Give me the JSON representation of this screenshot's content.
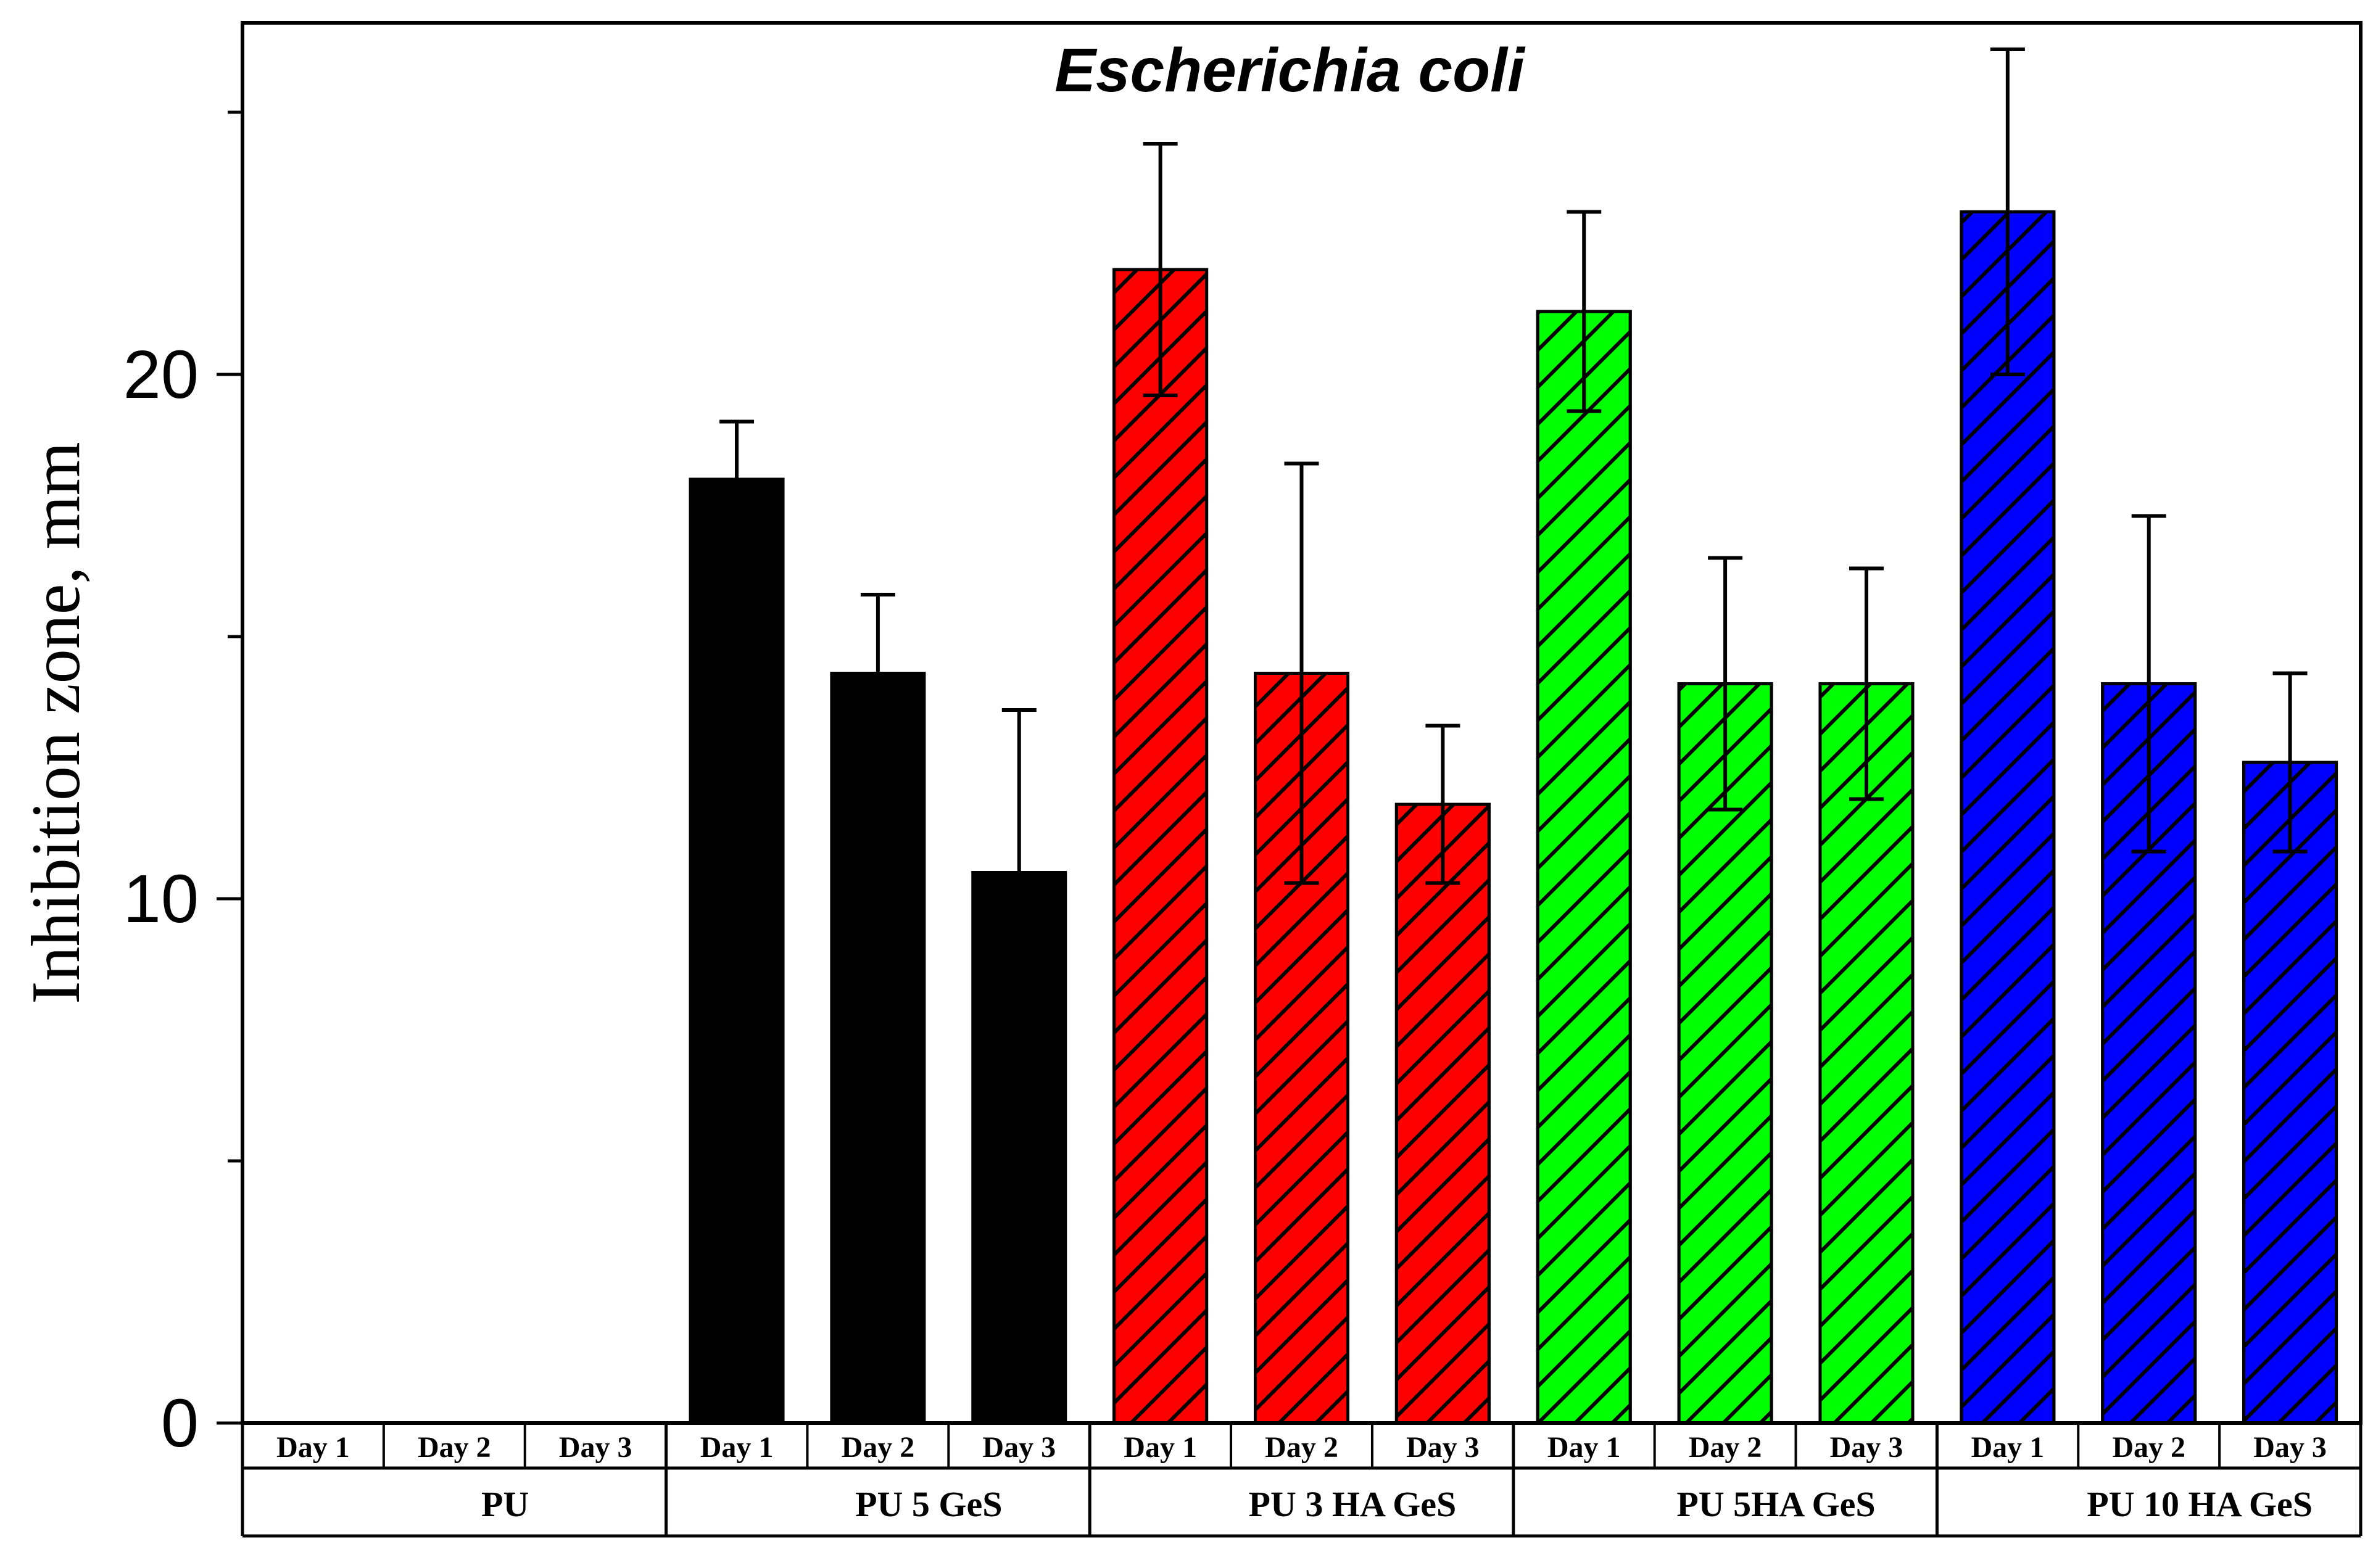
{
  "chart_data": {
    "type": "bar",
    "title": "Escherichia coli",
    "xlabel": "",
    "ylabel": "Inhibition zone, mm",
    "ylim": [
      0,
      26
    ],
    "yticks": [
      0,
      10,
      20
    ],
    "grid": false,
    "legend": "none",
    "day_labels": [
      "Day 1",
      "Day 2",
      "Day 3"
    ],
    "groups": [
      {
        "name": "PU",
        "color": "#000000",
        "hatch": false,
        "values": [
          0,
          0,
          0
        ],
        "errors": [
          0,
          0,
          0
        ]
      },
      {
        "name": "PU 5 GeS",
        "color": "#000000",
        "hatch": false,
        "values": [
          18.0,
          14.3,
          10.5
        ],
        "errors": [
          1.1,
          1.5,
          3.1
        ]
      },
      {
        "name": "PU 3 HA GeS",
        "color": "#ff0000",
        "hatch": true,
        "values": [
          22.0,
          14.3,
          11.8
        ],
        "errors": [
          2.4,
          4.0,
          1.5
        ]
      },
      {
        "name": "PU 5HA GeS",
        "color": "#00ff00",
        "hatch": true,
        "values": [
          21.2,
          14.1,
          14.1
        ],
        "errors": [
          1.9,
          2.4,
          2.2
        ]
      },
      {
        "name": "PU 10 HA GeS",
        "color": "#0000ff",
        "hatch": true,
        "values": [
          23.1,
          14.1,
          12.6
        ],
        "errors": [
          3.1,
          3.2,
          1.7
        ]
      }
    ]
  }
}
